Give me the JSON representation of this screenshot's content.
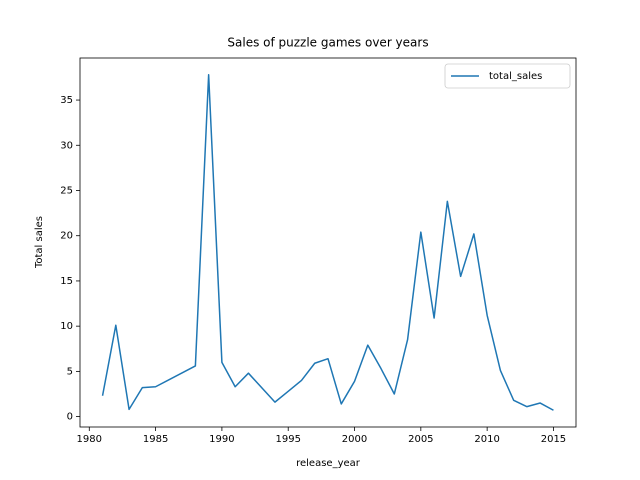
{
  "chart_data": {
    "type": "line",
    "title": "Sales of puzzle games over years",
    "x_label": "release_year",
    "y_label": "Total sales",
    "x": [
      1981,
      1982,
      1983,
      1984,
      1985,
      1988,
      1989,
      1990,
      1991,
      1992,
      1994,
      1995,
      1996,
      1997,
      1998,
      1999,
      2000,
      2001,
      2002,
      2003,
      2004,
      2005,
      2006,
      2007,
      2008,
      2009,
      2010,
      2011,
      2012,
      2013,
      2014,
      2015
    ],
    "series": [
      {
        "name": "total_sales",
        "color": "#1f77b4",
        "values": [
          2.3,
          10.1,
          0.8,
          3.2,
          3.3,
          5.6,
          37.8,
          6.0,
          3.3,
          4.8,
          1.6,
          2.8,
          4.0,
          5.9,
          6.4,
          1.4,
          3.9,
          7.9,
          5.3,
          2.5,
          8.5,
          20.4,
          10.9,
          23.8,
          15.5,
          20.2,
          11.2,
          5.1,
          1.8,
          1.1,
          1.5,
          0.7
        ]
      }
    ],
    "xlim": [
      1979.3,
      2016.7
    ],
    "xticks": [
      1980,
      1985,
      1990,
      1995,
      2000,
      2005,
      2010,
      2015
    ],
    "ylim": [
      -1.15,
      39.65
    ],
    "yticks": [
      0,
      5,
      10,
      15,
      20,
      25,
      30,
      35
    ],
    "legend": "upper right"
  }
}
